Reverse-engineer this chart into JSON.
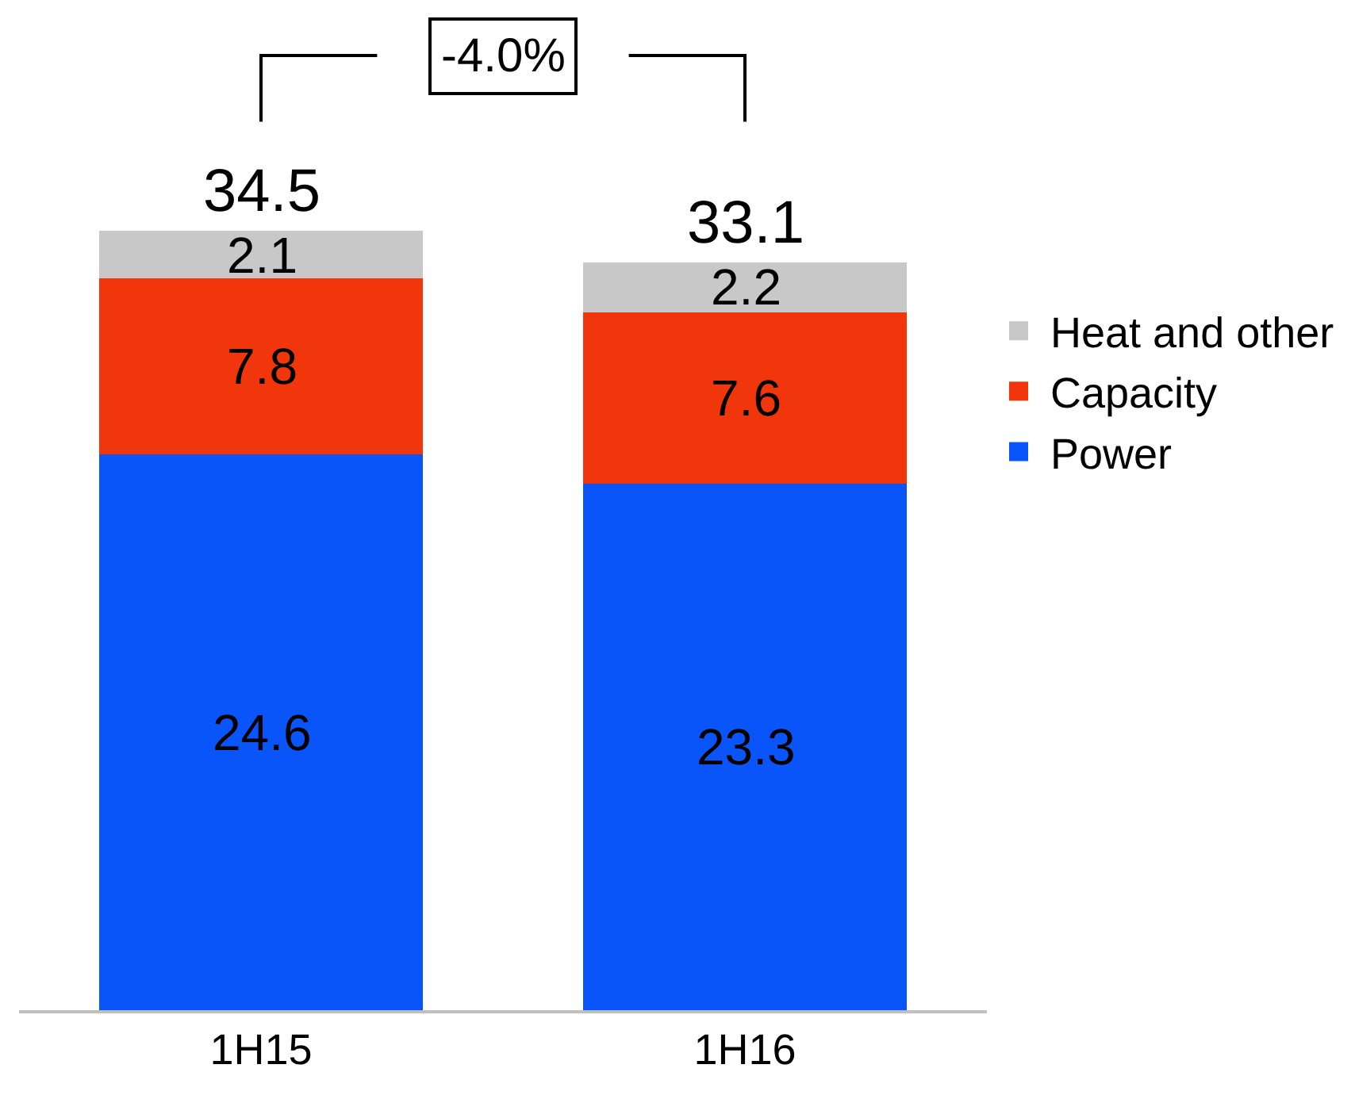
{
  "chart_data": {
    "type": "bar",
    "stacked": true,
    "data_labels": true,
    "legend": "right",
    "categories": [
      "1H15",
      "1H16"
    ],
    "series": [
      {
        "name": "Power",
        "color": "#0a55fa",
        "values": [
          24.6,
          23.3
        ]
      },
      {
        "name": "Capacity",
        "color": "#f0360a",
        "values": [
          7.8,
          7.6
        ]
      },
      {
        "name": "Heat and other",
        "color": "#c8c8c8",
        "values": [
          2.1,
          2.2
        ]
      }
    ],
    "totals": [
      "34.5",
      "33.1"
    ],
    "annotations": [
      "-4.0%"
    ]
  }
}
